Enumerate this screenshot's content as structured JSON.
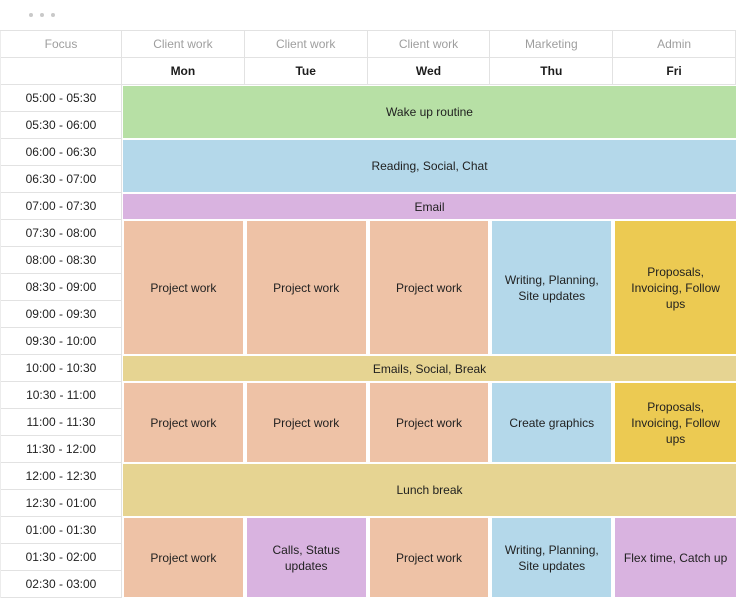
{
  "window": {
    "dots": [
      "window-dot",
      "window-dot",
      "window-dot"
    ]
  },
  "colors": {
    "green": "#b7e0a5",
    "blue": "#b4d8ea",
    "purple": "#d9b3e0",
    "peach": "#eec2a6",
    "gold": "#ecca52",
    "tan": "#e6d492",
    "border": "#e2e2e2",
    "category_text": "#9e9e9e",
    "text": "#202020",
    "dot": "#c9c9c9"
  },
  "header": {
    "columns": [
      {
        "category": "Focus",
        "day": ""
      },
      {
        "category": "Client work",
        "day": "Mon"
      },
      {
        "category": "Client work",
        "day": "Tue"
      },
      {
        "category": "Client work",
        "day": "Wed"
      },
      {
        "category": "Marketing",
        "day": "Thu"
      },
      {
        "category": "Admin",
        "day": "Fri"
      }
    ]
  },
  "time_slots": [
    "05:00 - 05:30",
    "05:30 - 06:00",
    "06:00 - 06:30",
    "06:30 - 07:00",
    "07:00 - 07:30",
    "07:30 - 08:00",
    "08:00 - 08:30",
    "08:30 - 09:00",
    "09:00 - 09:30",
    "09:30 - 10:00",
    "10:00 - 10:30",
    "10:30 - 11:00",
    "11:00 - 11:30",
    "11:30 - 12:00",
    "12:00 - 12:30",
    "12:30 - 01:00",
    "01:00 - 01:30",
    "01:30 - 02:00",
    "02:30 - 03:00"
  ],
  "events": [
    {
      "label": "Wake up routine",
      "color": "green",
      "days": "Mon-Fri",
      "time": "05:00 - 06:00",
      "col": 2,
      "col_span": 5,
      "row": 3,
      "row_span": 2
    },
    {
      "label": "Reading, Social, Chat",
      "color": "blue",
      "days": "Mon-Fri",
      "time": "06:00 - 07:00",
      "col": 2,
      "col_span": 5,
      "row": 5,
      "row_span": 2
    },
    {
      "label": "Email",
      "color": "purple",
      "days": "Mon-Fri",
      "time": "07:00 - 07:30",
      "col": 2,
      "col_span": 5,
      "row": 7,
      "row_span": 1
    },
    {
      "label": "Project work",
      "color": "peach",
      "days": "Mon",
      "time": "07:30 - 10:00",
      "col": 2,
      "col_span": 1,
      "row": 8,
      "row_span": 5
    },
    {
      "label": "Project work",
      "color": "peach",
      "days": "Tue",
      "time": "07:30 - 10:00",
      "col": 3,
      "col_span": 1,
      "row": 8,
      "row_span": 5
    },
    {
      "label": "Project work",
      "color": "peach",
      "days": "Wed",
      "time": "07:30 - 10:00",
      "col": 4,
      "col_span": 1,
      "row": 8,
      "row_span": 5
    },
    {
      "label": "Writing, Planning, Site updates",
      "color": "blue",
      "days": "Thu",
      "time": "07:30 - 10:00",
      "col": 5,
      "col_span": 1,
      "row": 8,
      "row_span": 5
    },
    {
      "label": "Proposals, Invoicing, Follow ups",
      "color": "gold",
      "days": "Fri",
      "time": "07:30 - 10:00",
      "col": 6,
      "col_span": 1,
      "row": 8,
      "row_span": 5
    },
    {
      "label": "Emails, Social, Break",
      "color": "tan",
      "days": "Mon-Fri",
      "time": "10:00 - 10:30",
      "col": 2,
      "col_span": 5,
      "row": 13,
      "row_span": 1
    },
    {
      "label": "Project work",
      "color": "peach",
      "days": "Mon",
      "time": "10:30 - 12:00",
      "col": 2,
      "col_span": 1,
      "row": 14,
      "row_span": 3
    },
    {
      "label": "Project work",
      "color": "peach",
      "days": "Tue",
      "time": "10:30 - 12:00",
      "col": 3,
      "col_span": 1,
      "row": 14,
      "row_span": 3
    },
    {
      "label": "Project work",
      "color": "peach",
      "days": "Wed",
      "time": "10:30 - 12:00",
      "col": 4,
      "col_span": 1,
      "row": 14,
      "row_span": 3
    },
    {
      "label": "Create graphics",
      "color": "blue",
      "days": "Thu",
      "time": "10:30 - 12:00",
      "col": 5,
      "col_span": 1,
      "row": 14,
      "row_span": 3
    },
    {
      "label": "Proposals, Invoicing, Follow ups",
      "color": "gold",
      "days": "Fri",
      "time": "10:30 - 12:00",
      "col": 6,
      "col_span": 1,
      "row": 14,
      "row_span": 3
    },
    {
      "label": "Lunch break",
      "color": "tan",
      "days": "Mon-Fri",
      "time": "12:00 - 01:00",
      "col": 2,
      "col_span": 5,
      "row": 17,
      "row_span": 2
    },
    {
      "label": "Project work",
      "color": "peach",
      "days": "Mon",
      "time": "01:00 - 03:00",
      "col": 2,
      "col_span": 1,
      "row": 19,
      "row_span": 3
    },
    {
      "label": "Calls, Status updates",
      "color": "purple",
      "days": "Tue",
      "time": "01:00 - 03:00",
      "col": 3,
      "col_span": 1,
      "row": 19,
      "row_span": 3
    },
    {
      "label": "Project work",
      "color": "peach",
      "days": "Wed",
      "time": "01:00 - 03:00",
      "col": 4,
      "col_span": 1,
      "row": 19,
      "row_span": 3
    },
    {
      "label": "Writing, Planning, Site updates",
      "color": "blue",
      "days": "Thu",
      "time": "01:00 - 03:00",
      "col": 5,
      "col_span": 1,
      "row": 19,
      "row_span": 3
    },
    {
      "label": "Flex time, Catch up",
      "color": "purple",
      "days": "Fri",
      "time": "01:00 - 03:00",
      "col": 6,
      "col_span": 1,
      "row": 19,
      "row_span": 3
    }
  ]
}
